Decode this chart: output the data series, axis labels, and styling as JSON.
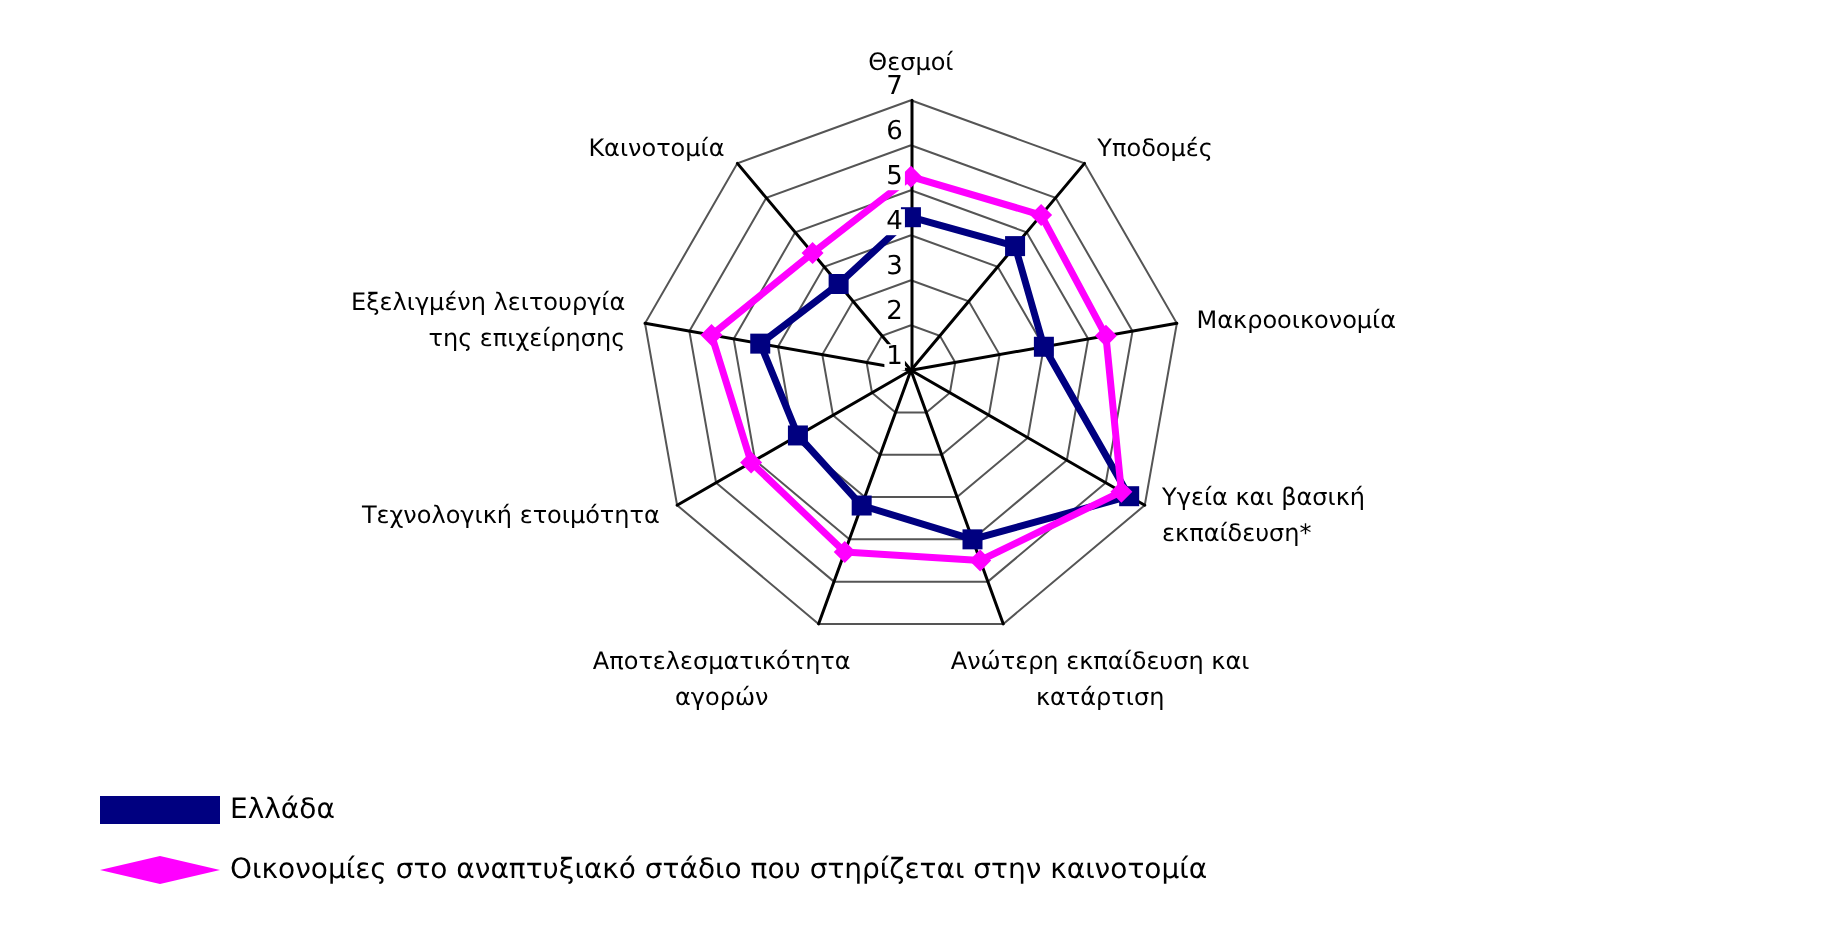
{
  "chart_data": {
    "type": "radar",
    "categories": [
      "Θεσμοί",
      "Υποδομές",
      "Μακροοικονομία",
      "Υγεία και βασική\nεκπαίδευση*",
      "Ανώτερη εκπαίδευση και\nκατάρτιση",
      "Αποτελεσματικότητα\nαγορών",
      "Τεχνολογική ετοιμότητα",
      "Εξελιγμένη λειτουργία\nτης επιχείρησης",
      "Καινοτομία"
    ],
    "series": [
      {
        "name": "Ελλάδα",
        "color": "#000080",
        "marker": "square",
        "values": [
          4.4,
          4.6,
          4.0,
          6.6,
          5.0,
          4.2,
          3.9,
          4.4,
          3.5
        ]
      },
      {
        "name": "Οικονομίες στο αναπτυξιακό στάδιο που στηρίζεται στην καινοτομία",
        "color": "#ff00ff",
        "marker": "diamond",
        "values": [
          5.3,
          5.5,
          5.4,
          6.4,
          5.5,
          5.3,
          5.1,
          5.5,
          4.4
        ]
      }
    ],
    "ylim": [
      1,
      7
    ],
    "yticks": [
      1,
      2,
      3,
      4,
      5,
      6,
      7
    ],
    "legend": "bottom left"
  }
}
